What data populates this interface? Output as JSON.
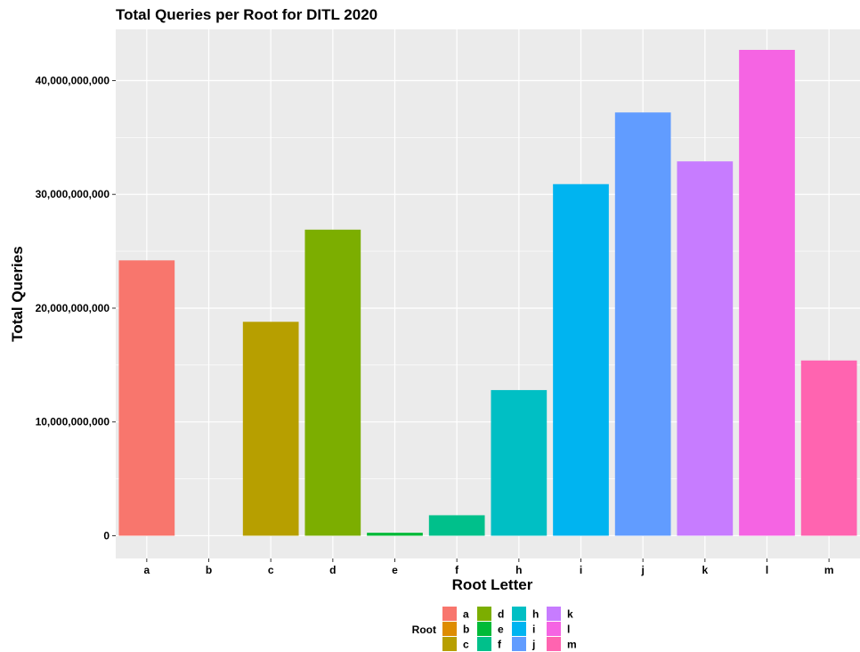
{
  "chart_data": {
    "type": "bar",
    "title": "Total Queries per Root for DITL 2020",
    "xlabel": "Root Letter",
    "ylabel": "Total Queries",
    "categories": [
      "a",
      "b",
      "c",
      "d",
      "e",
      "f",
      "h",
      "i",
      "j",
      "k",
      "l",
      "m"
    ],
    "values": [
      24200000000,
      0,
      18800000000,
      26900000000,
      260000000,
      1800000000,
      12800000000,
      30900000000,
      37200000000,
      32900000000,
      42700000000,
      15400000000
    ],
    "colors": [
      "#F8766D",
      "#DE8C00",
      "#B79F00",
      "#7CAE00",
      "#00BA38",
      "#00C08B",
      "#00BFC4",
      "#00B4F0",
      "#619CFF",
      "#C77CFF",
      "#F564E3",
      "#FF64B0"
    ],
    "ylim": [
      -2000000000,
      44500000000
    ],
    "yticks": [
      0,
      10000000000,
      20000000000,
      30000000000,
      40000000000
    ],
    "ytick_labels": [
      "0",
      "10,000,000,000",
      "20,000,000,000",
      "30,000,000,000",
      "40,000,000,000"
    ],
    "grid": true,
    "background": "#EBEBEB",
    "legend": {
      "title": "Root",
      "placement": "bottom",
      "entries": [
        "a",
        "b",
        "c",
        "d",
        "e",
        "f",
        "h",
        "i",
        "j",
        "k",
        "l",
        "m"
      ]
    }
  }
}
